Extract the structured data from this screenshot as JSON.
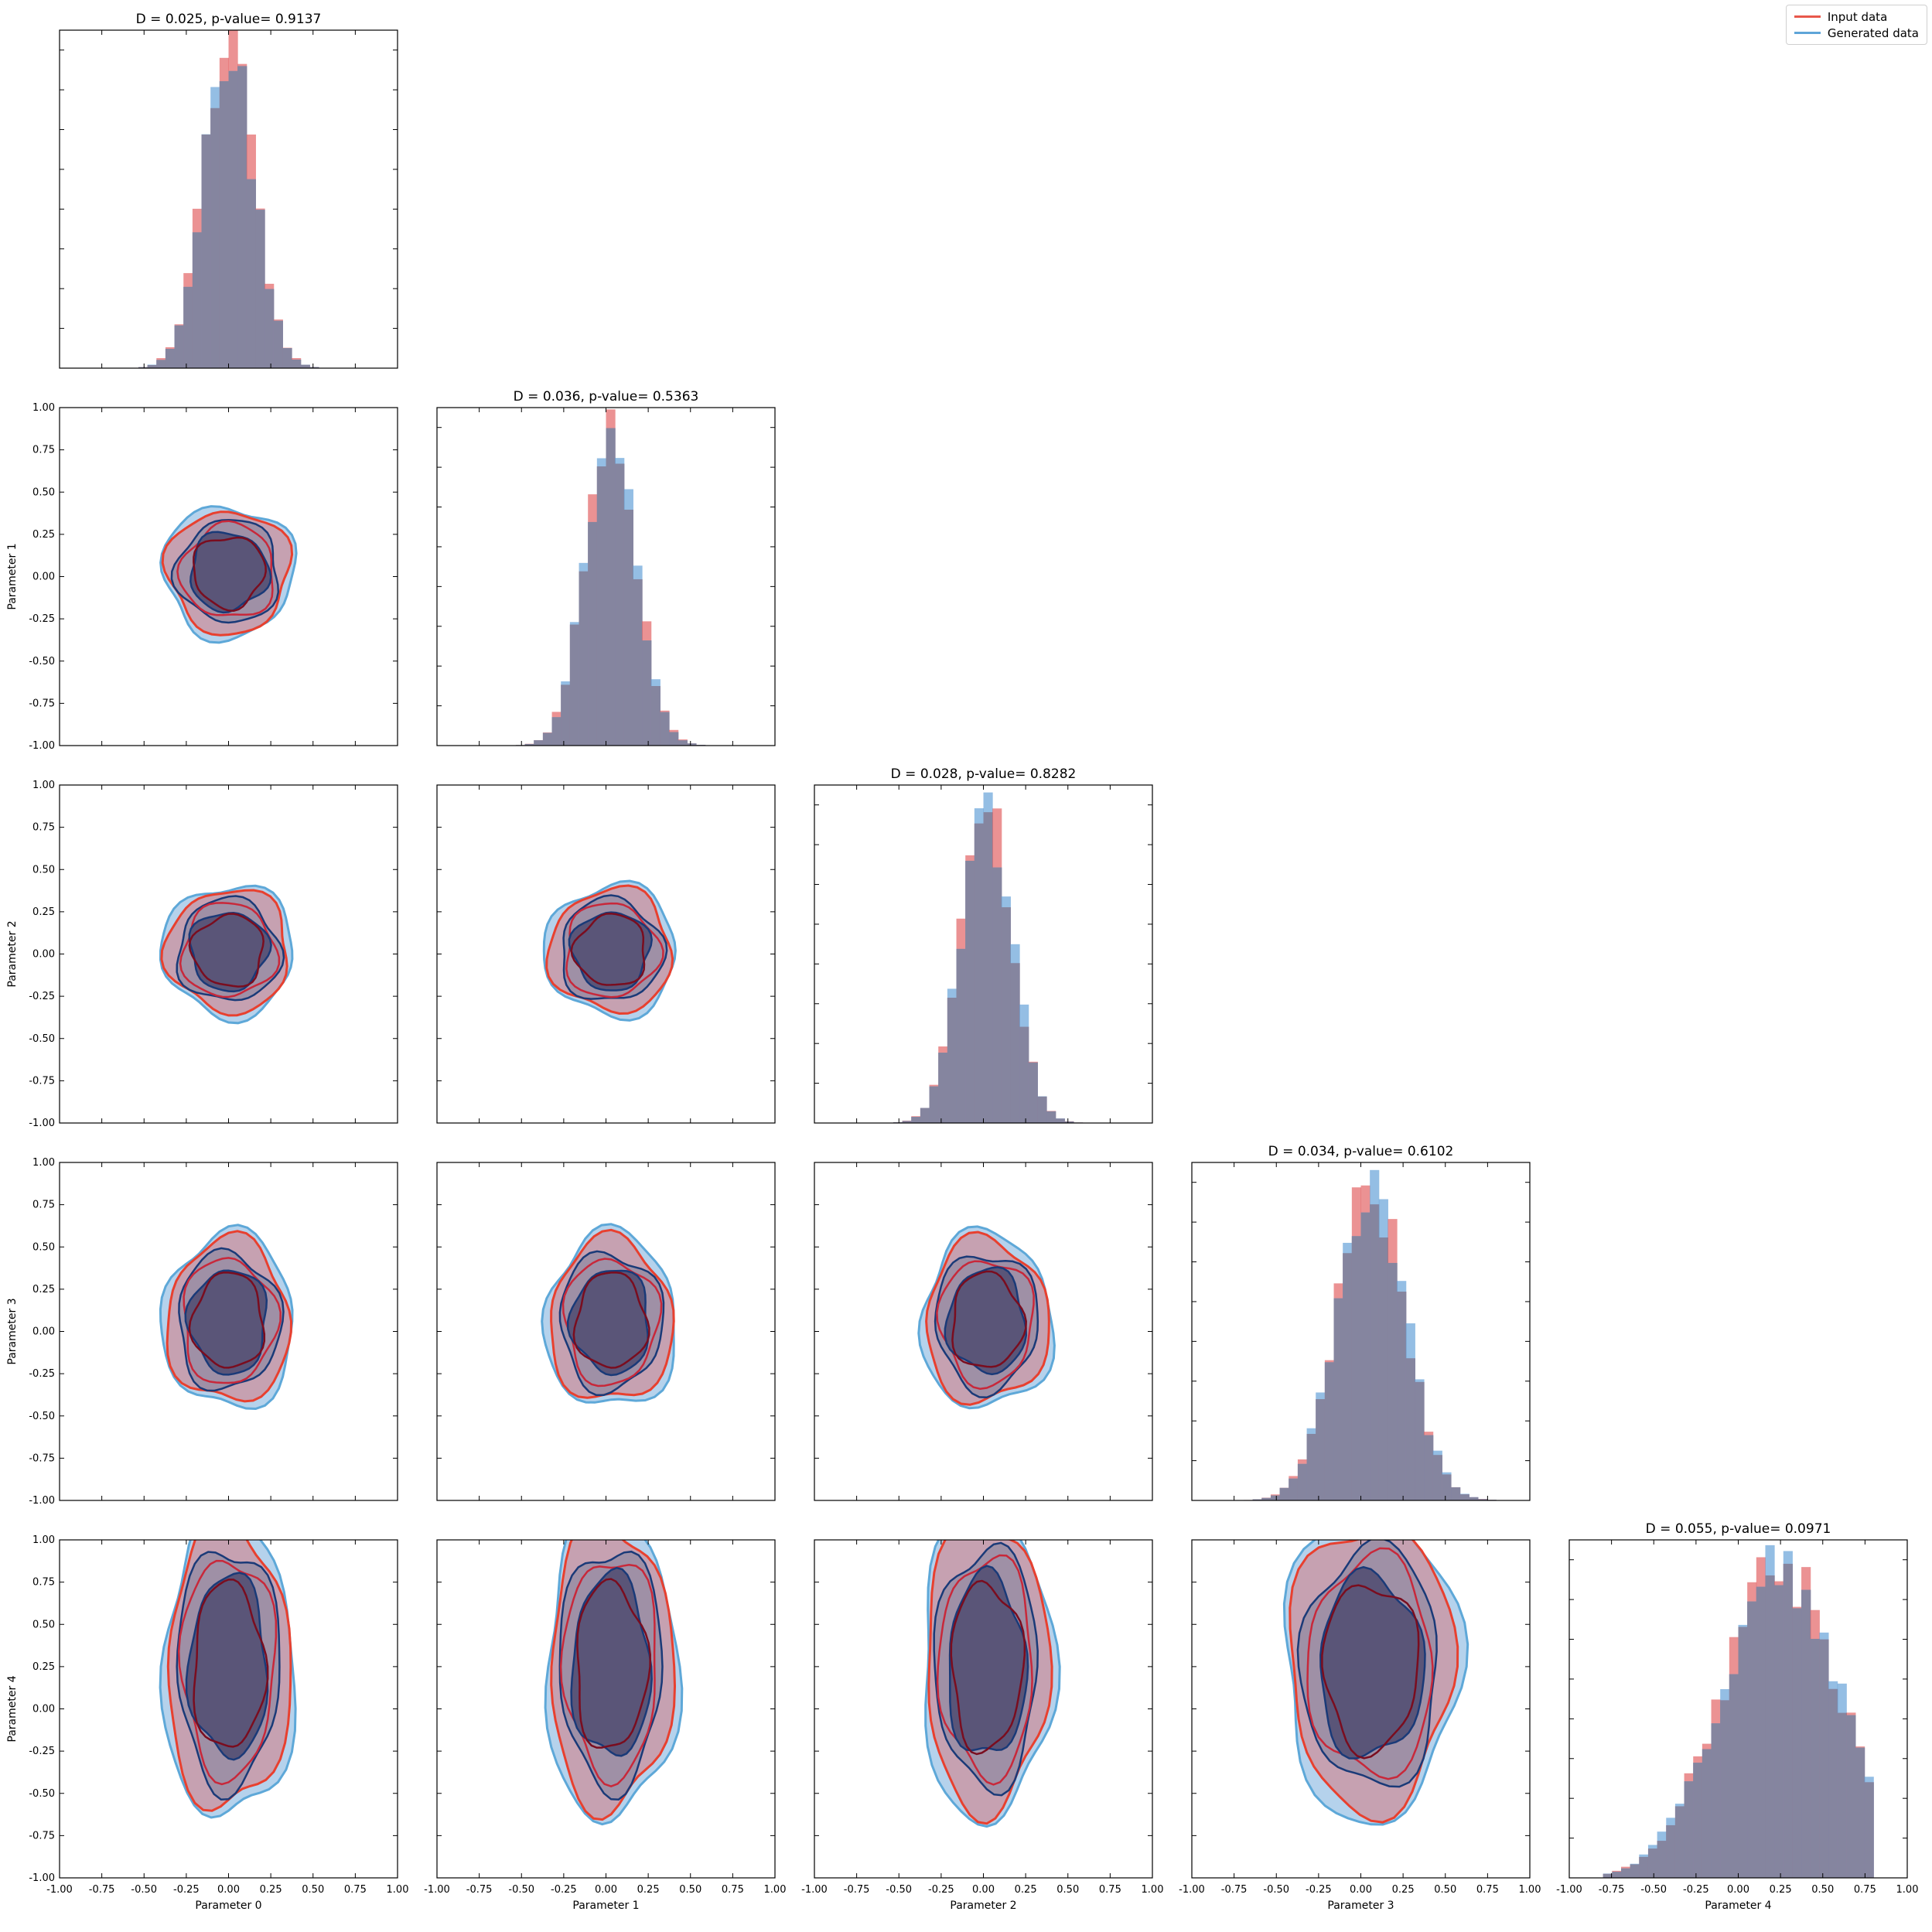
{
  "chart_data": {
    "type": "corner",
    "n_params": 5,
    "parameters": [
      "Parameter 0",
      "Parameter 1",
      "Parameter 2",
      "Parameter 3",
      "Parameter 4"
    ],
    "axis_range": [
      -1.0,
      1.0
    ],
    "tick_labels": [
      "-1.00",
      "-0.75",
      "-0.50",
      "-0.25",
      "0.00",
      "0.25",
      "0.50",
      "0.75",
      "1.00"
    ],
    "tick_values": [
      -1.0,
      -0.75,
      -0.5,
      -0.25,
      0.0,
      0.25,
      0.5,
      0.75,
      1.0
    ],
    "legend": {
      "placement": "top-right",
      "entries": [
        {
          "label": "Input data",
          "color": "#e8584b"
        },
        {
          "label": "Generated data",
          "color": "#5ea5d8"
        }
      ]
    },
    "colors": {
      "input_fill": "#e15759",
      "generated_fill": "#5b9bd5",
      "overlap": "#85859f",
      "input_contour": "#e8402f",
      "input_contour_inner": "#7a0d1f",
      "generated_contour": "#5ea8d8",
      "generated_contour_inner": "#1a3a78",
      "core": "#5a5578"
    },
    "diagonal": [
      {
        "title": "D = 0.025, p-value= 0.9137",
        "D": 0.025,
        "p_value": 0.9137,
        "mean": 0.0,
        "std": 0.15
      },
      {
        "title": "D = 0.036, p-value= 0.5363",
        "D": 0.036,
        "p_value": 0.5363,
        "mean": 0.03,
        "std": 0.15
      },
      {
        "title": "D = 0.028, p-value= 0.8282",
        "D": 0.028,
        "p_value": 0.8282,
        "mean": 0.02,
        "std": 0.15
      },
      {
        "title": "D = 0.034, p-value= 0.6102",
        "D": 0.034,
        "p_value": 0.6102,
        "mean": 0.06,
        "std": 0.2
      },
      {
        "title": "D = 0.055, p-value= 0.0971",
        "D": 0.055,
        "p_value": 0.0971,
        "mean": 0.25,
        "std": 0.35
      }
    ]
  }
}
